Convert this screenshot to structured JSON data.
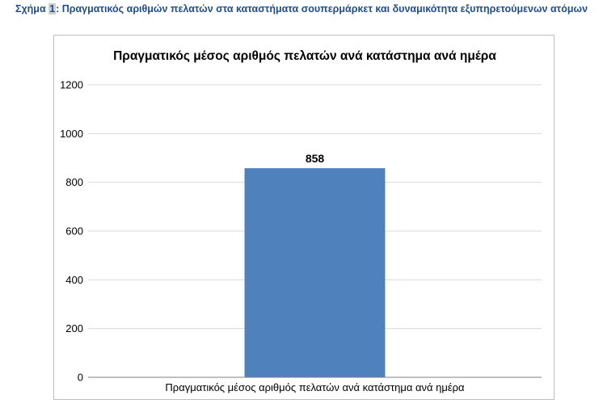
{
  "caption": {
    "prefix": "Σχήμα ",
    "number": "1",
    "text": ": Πραγματικός αριθμών πελατών στα καταστήματα σουπερμάρκετ και δυναμικότητα εξυπηρετούμενων ατόμων"
  },
  "colors": {
    "caption": "#1f4e8c",
    "bar": "#4f81bd",
    "grid": "#d9d9d9",
    "axis": "#808080"
  },
  "chart_data": {
    "type": "bar",
    "title": "Πραγματικός μέσος αριθμός πελατών ανά κατάστημα ανά ημέρα",
    "categories": [
      "Πραγματικός μέσος αριθμός πελατών ανά κατάστημα ανά ημέρα"
    ],
    "values": [
      858
    ],
    "data_labels": [
      "858"
    ],
    "ylim": [
      0,
      1200
    ],
    "yticks": [
      0,
      200,
      400,
      600,
      800,
      1000,
      1200
    ],
    "xlabel": "",
    "ylabel": "",
    "grid": true,
    "legend": "none"
  }
}
